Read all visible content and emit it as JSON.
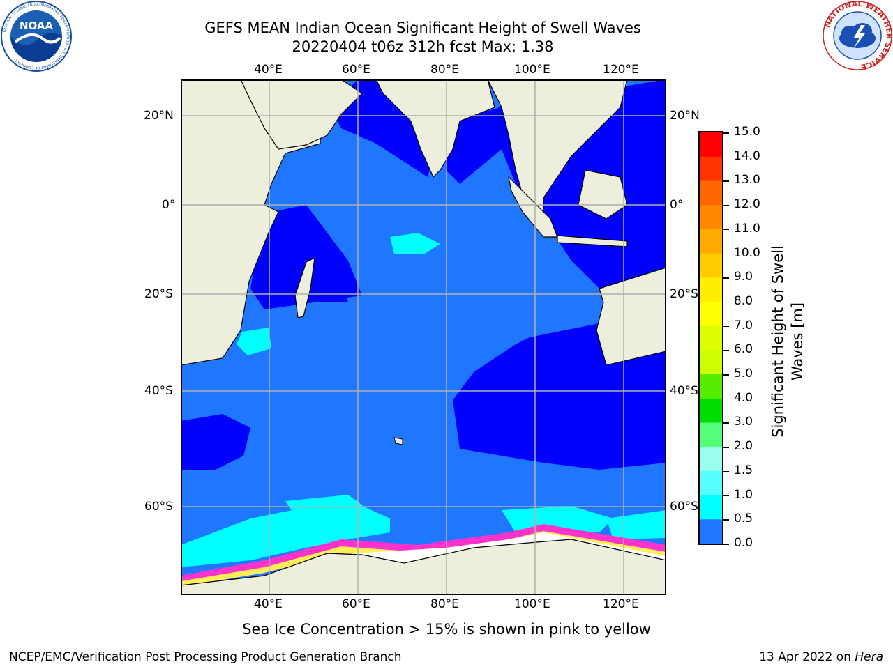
{
  "title": {
    "line1": "GEFS MEAN Indian Ocean Significant Height of Swell Waves",
    "line2": "20220404 t06z 312h fcst   Max: 1.38"
  },
  "logos": {
    "left": {
      "icon": "noaa-logo",
      "text": "NOAA"
    },
    "left_ring": "NATIONAL OCEANIC AND ATMOSPHERIC ADMINISTRATION · U.S. DEPARTMENT OF COMMERCE",
    "right": {
      "icon": "nws-logo"
    },
    "right_ring": "NATIONAL WEATHER SERVICE"
  },
  "map": {
    "lon_labels": [
      "40°E",
      "60°E",
      "80°E",
      "100°E",
      "120°E"
    ],
    "lat_labels_left": [
      "20°N",
      "0°",
      "20°S",
      "40°S",
      "60°S"
    ],
    "lat_labels_right": [
      "20°N",
      "0°",
      "20°S",
      "40°S",
      "60°S"
    ],
    "colors": {
      "land": "#eeeedd",
      "deep_blue": "#0000ff",
      "mid_blue": "#1f77ff",
      "cyan": "#00ffff",
      "light_cyan": "#99ffff",
      "ice_pink": "#ff33cc",
      "ice_yellow": "#ffee55",
      "ice_white": "#ffffff"
    }
  },
  "colorbar": {
    "label": "Significant Height of Swell Waves [m]",
    "label_line1": "Significant Height of Swell",
    "label_line2": "Waves [m]",
    "ticks": [
      "15.0",
      "14.0",
      "13.0",
      "12.0",
      "11.0",
      "10.0",
      "9.0",
      "8.0",
      "7.0",
      "6.0",
      "5.0",
      "4.0",
      "3.0",
      "2.0",
      "1.5",
      "1.0",
      "0.5",
      "0.0"
    ],
    "colors": [
      "#ff0000",
      "#ff3300",
      "#ff6600",
      "#ff8800",
      "#ffaa00",
      "#ffcc00",
      "#ffee00",
      "#ffff00",
      "#ddff00",
      "#ccff00",
      "#55ee00",
      "#00dd00",
      "#55ff77",
      "#99ffee",
      "#55ffff",
      "#00ffff",
      "#1f77ff",
      "#0000ff"
    ]
  },
  "caption": "Sea Ice Concentration > 15% is shown in pink to yellow",
  "footer": {
    "left": "NCEP/EMC/Verification Post Processing Product Generation Branch",
    "right_prefix": "13 Apr 2022 on ",
    "right_machine": "Hera"
  }
}
